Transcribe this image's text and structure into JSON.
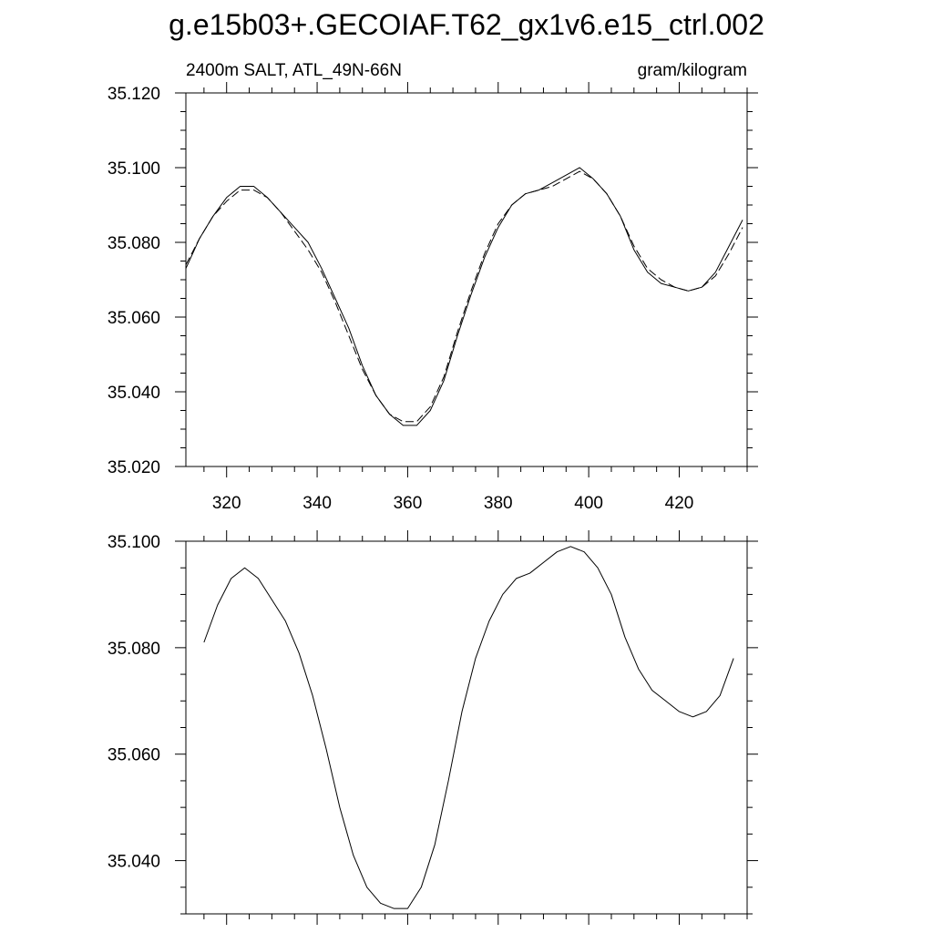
{
  "chart_data": [
    {
      "type": "line",
      "title": "g.e15b03+.GECOIAF.T62_gx1v6.e15_ctrl.002",
      "left_subtitle": "2400m SALT, ATL_49N-66N",
      "right_subtitle": "gram/kilogram",
      "xlim": [
        311,
        435
      ],
      "ylim": [
        35.02,
        35.12
      ],
      "xticks": [
        320,
        340,
        360,
        380,
        400,
        420
      ],
      "xtick_labels": [
        "320",
        "340",
        "360",
        "380",
        "400",
        "420"
      ],
      "yticks": [
        35.02,
        35.04,
        35.06,
        35.08,
        35.1,
        35.12
      ],
      "ytick_labels": [
        "35.020",
        "35.040",
        "35.060",
        "35.080",
        "35.100",
        "35.120"
      ],
      "series": [
        {
          "style": "solid",
          "x": [
            311,
            314,
            317,
            320,
            323,
            326,
            329,
            332,
            335,
            338,
            341,
            344,
            347,
            350,
            353,
            356,
            359,
            362,
            365,
            368,
            371,
            374,
            377,
            380,
            383,
            386,
            389,
            392,
            395,
            398,
            401,
            404,
            407,
            410,
            413,
            416,
            419,
            422,
            425,
            428,
            431,
            434
          ],
          "y": [
            35.073,
            35.081,
            35.087,
            35.092,
            35.095,
            35.095,
            35.092,
            35.088,
            35.084,
            35.08,
            35.073,
            35.065,
            35.057,
            35.047,
            35.039,
            35.034,
            35.031,
            35.031,
            35.035,
            35.043,
            35.055,
            35.066,
            35.076,
            35.084,
            35.09,
            35.093,
            35.094,
            35.096,
            35.098,
            35.1,
            35.097,
            35.093,
            35.087,
            35.078,
            35.072,
            35.069,
            35.068,
            35.067,
            35.068,
            35.072,
            35.079,
            35.086
          ]
        },
        {
          "style": "dashed",
          "x": [
            311,
            314,
            317,
            320,
            323,
            326,
            329,
            332,
            335,
            338,
            341,
            344,
            347,
            350,
            353,
            356,
            359,
            362,
            365,
            368,
            371,
            374,
            377,
            380,
            383,
            386,
            389,
            392,
            395,
            398,
            401,
            404,
            407,
            410,
            413,
            416,
            419,
            422,
            425,
            428,
            431,
            434
          ],
          "y": [
            35.074,
            35.081,
            35.087,
            35.091,
            35.094,
            35.094,
            35.092,
            35.088,
            35.083,
            35.078,
            35.072,
            35.064,
            35.055,
            35.046,
            35.039,
            35.034,
            35.032,
            35.032,
            35.036,
            35.044,
            35.056,
            35.067,
            35.077,
            35.085,
            35.09,
            35.093,
            35.094,
            35.095,
            35.097,
            35.099,
            35.097,
            35.093,
            35.087,
            35.079,
            35.073,
            35.07,
            35.068,
            35.067,
            35.068,
            35.071,
            35.077,
            35.084
          ]
        }
      ]
    },
    {
      "type": "line",
      "xlim": [
        311,
        435
      ],
      "ylim": [
        35.03,
        35.1
      ],
      "xticks": [
        320,
        340,
        360,
        380,
        400,
        420
      ],
      "yticks": [
        35.04,
        35.06,
        35.08,
        35.1
      ],
      "ytick_labels": [
        "35.040",
        "35.060",
        "35.080",
        "35.100"
      ],
      "series": [
        {
          "style": "solid",
          "x": [
            315,
            318,
            321,
            324,
            327,
            330,
            333,
            336,
            339,
            342,
            345,
            348,
            351,
            354,
            357,
            360,
            363,
            366,
            369,
            372,
            375,
            378,
            381,
            384,
            387,
            390,
            393,
            396,
            399,
            402,
            405,
            408,
            411,
            414,
            417,
            420,
            423,
            426,
            429,
            432
          ],
          "y": [
            35.081,
            35.088,
            35.093,
            35.095,
            35.093,
            35.089,
            35.085,
            35.079,
            35.071,
            35.061,
            35.05,
            35.041,
            35.035,
            35.032,
            35.031,
            35.031,
            35.035,
            35.043,
            35.055,
            35.068,
            35.078,
            35.085,
            35.09,
            35.093,
            35.094,
            35.096,
            35.098,
            35.099,
            35.098,
            35.095,
            35.09,
            35.082,
            35.076,
            35.072,
            35.07,
            35.068,
            35.067,
            35.068,
            35.071,
            35.078
          ]
        }
      ]
    }
  ]
}
